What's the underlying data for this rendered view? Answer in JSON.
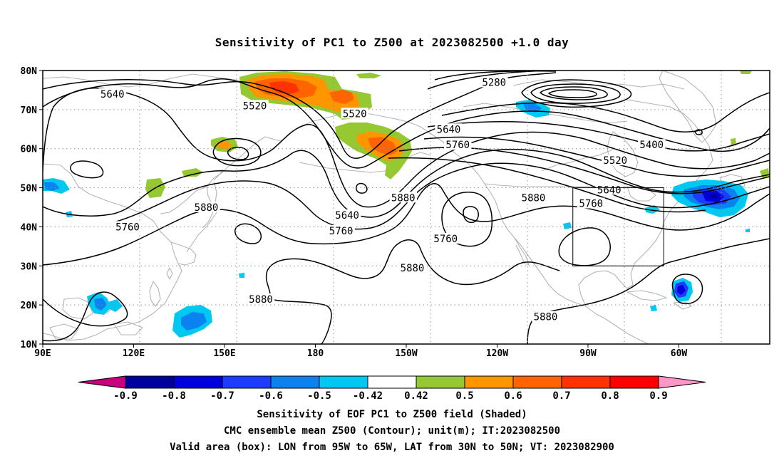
{
  "title": "Sensitivity of PC1 to Z500 at 2023082500 +1.0 day",
  "latitude_labels": [
    "80N",
    "70N",
    "60N",
    "50N",
    "40N",
    "30N",
    "20N",
    "10N"
  ],
  "longitude_labels": [
    "90E",
    "120E",
    "150E",
    "180",
    "150W",
    "120W",
    "90W",
    "60W"
  ],
  "contour_labels": [
    {
      "text": "5640",
      "lon": 113,
      "lat": 74
    },
    {
      "text": "5520",
      "lon": 160,
      "lat": 71
    },
    {
      "text": "5280",
      "lon": 239,
      "lat": 77
    },
    {
      "text": "5520",
      "lon": 193,
      "lat": 69
    },
    {
      "text": "5640",
      "lon": 224,
      "lat": 65
    },
    {
      "text": "5760",
      "lon": 227,
      "lat": 61
    },
    {
      "text": "5400",
      "lon": 291,
      "lat": 61
    },
    {
      "text": "5520",
      "lon": 279,
      "lat": 57
    },
    {
      "text": "5640",
      "lon": 277,
      "lat": 49.5
    },
    {
      "text": "5760",
      "lon": 271,
      "lat": 46
    },
    {
      "text": "5880",
      "lon": 209,
      "lat": 47.5
    },
    {
      "text": "5880",
      "lon": 252,
      "lat": 47.5
    },
    {
      "text": "5880",
      "lon": 144,
      "lat": 45
    },
    {
      "text": "5640",
      "lon": 190.5,
      "lat": 43
    },
    {
      "text": "5760",
      "lon": 188.5,
      "lat": 39
    },
    {
      "text": "5760",
      "lon": 118,
      "lat": 40
    },
    {
      "text": "5760",
      "lon": 223,
      "lat": 37
    },
    {
      "text": "5880",
      "lon": 212,
      "lat": 29.5
    },
    {
      "text": "5880",
      "lon": 162,
      "lat": 21.5
    },
    {
      "text": "5880",
      "lon": 256,
      "lat": 17
    }
  ],
  "valid_area_box": {
    "lon_west": 265,
    "lon_east": 295,
    "lat_south": 30,
    "lat_north": 50
  },
  "colorbar": {
    "colors": [
      "#c80080",
      "#0000a0",
      "#0000dc",
      "#1e3cff",
      "#0a82f0",
      "#00c8f0",
      "#ffffff",
      "#96c832",
      "#ff9600",
      "#ff6400",
      "#ff3200",
      "#ff0000",
      "#ff96c8"
    ],
    "tick_labels": [
      "-0.9",
      "-0.8",
      "-0.7",
      "-0.6",
      "-0.5",
      "-0.42",
      "0.42",
      "0.5",
      "0.6",
      "0.7",
      "0.8",
      "0.9"
    ]
  },
  "captions": [
    "Sensitivity of EOF PC1 to Z500 field (Shaded)",
    "CMC ensemble mean Z500 (Contour); unit(m); IT:2023082500",
    "Valid area (box): LON from 95W to 65W, LAT from 30N to 50N; VT: 2023082900"
  ]
}
